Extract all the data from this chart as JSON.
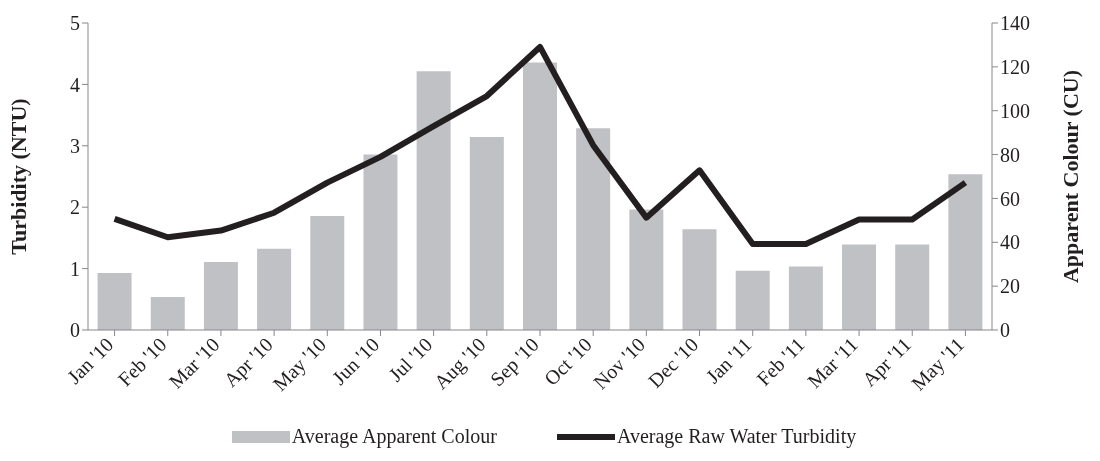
{
  "chart_data": {
    "type": "bar",
    "categories": [
      "Jan '10",
      "Feb '10",
      "Mar '10",
      "Apr '10",
      "May '10",
      "Jun '10",
      "Jul '10",
      "Aug '10",
      "Sep '10",
      "Oct '10",
      "Nov '10",
      "Dec '10",
      "Jan '11",
      "Feb '11",
      "Mar '11",
      "Apr '11",
      "May '11"
    ],
    "series": [
      {
        "name": "Average Apparent Colour",
        "axis": "y2",
        "color": "#c0c1c4",
        "values": [
          26,
          15,
          31,
          37,
          52,
          80,
          118,
          88,
          122,
          92,
          55,
          46,
          27,
          29,
          39,
          39,
          71
        ]
      },
      {
        "name": "Average Raw Water Turbidity",
        "type": "line",
        "color": "#231f20",
        "values": [
          1.81,
          1.51,
          1.62,
          1.91,
          2.4,
          2.82,
          3.32,
          3.81,
          4.61,
          3.01,
          1.83,
          2.6,
          1.4,
          1.4,
          1.8,
          1.8,
          2.4
        ]
      }
    ],
    "ylabel": "Turbidity (NTU)",
    "y2label": "Apparent Colour (CU)",
    "ylim": [
      0,
      5
    ],
    "yticks": [
      0,
      1,
      2,
      3,
      4,
      5
    ],
    "y2lim": [
      0,
      140
    ],
    "y2ticks": [
      0,
      20,
      40,
      60,
      80,
      100,
      120,
      140
    ],
    "legend": "bottom",
    "marker": "none",
    "line_style": "solid"
  }
}
